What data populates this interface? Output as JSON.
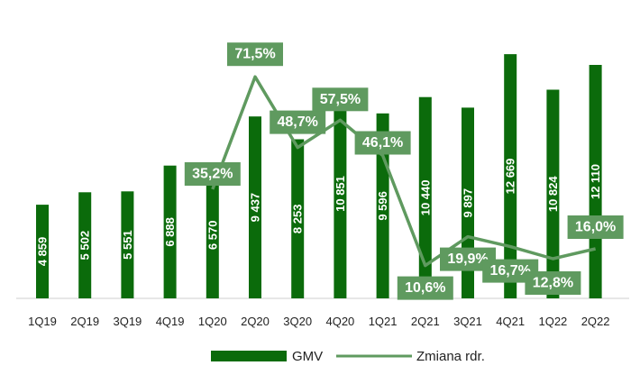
{
  "chart_data": {
    "type": "bar",
    "categories": [
      "1Q19",
      "2Q19",
      "3Q19",
      "4Q19",
      "1Q20",
      "2Q20",
      "3Q20",
      "4Q20",
      "1Q21",
      "2Q21",
      "3Q21",
      "4Q21",
      "1Q22",
      "2Q22"
    ],
    "series": [
      {
        "name": "GMV",
        "type": "bar",
        "values": [
          4859,
          5502,
          5551,
          6888,
          6570,
          9437,
          8253,
          10851,
          9596,
          10440,
          9897,
          12669,
          10824,
          12110
        ],
        "labels": [
          "4 859",
          "5 502",
          "5 551",
          "6 888",
          "6 570",
          "9 437",
          "8 253",
          "10 851",
          "9 596",
          "10 440",
          "9 897",
          "12 669",
          "10 824",
          "12 110"
        ],
        "color": "#0b6b0b"
      },
      {
        "name": "Zmiana rdr.",
        "type": "line",
        "x": [
          "1Q20",
          "2Q20",
          "3Q20",
          "4Q20",
          "1Q21",
          "2Q21",
          "3Q21",
          "4Q21",
          "1Q22",
          "2Q22"
        ],
        "values": [
          35.2,
          71.5,
          48.7,
          57.5,
          46.1,
          10.6,
          19.9,
          16.7,
          12.8,
          16.0
        ],
        "labels": [
          "35,2%",
          "71,5%",
          "48,7%",
          "57,5%",
          "46,1%",
          "10,6%",
          "19,9%",
          "16,7%",
          "12,8%",
          "16,0%"
        ],
        "color": "#5f9a5f"
      }
    ],
    "bar_ylim": [
      0,
      13000
    ],
    "line_ylim": [
      0,
      80
    ],
    "legend_position": "bottom",
    "grid": false,
    "xlabel": "",
    "ylabel": ""
  },
  "legend": {
    "bar_label": "GMV",
    "line_label": "Zmiana rdr."
  }
}
